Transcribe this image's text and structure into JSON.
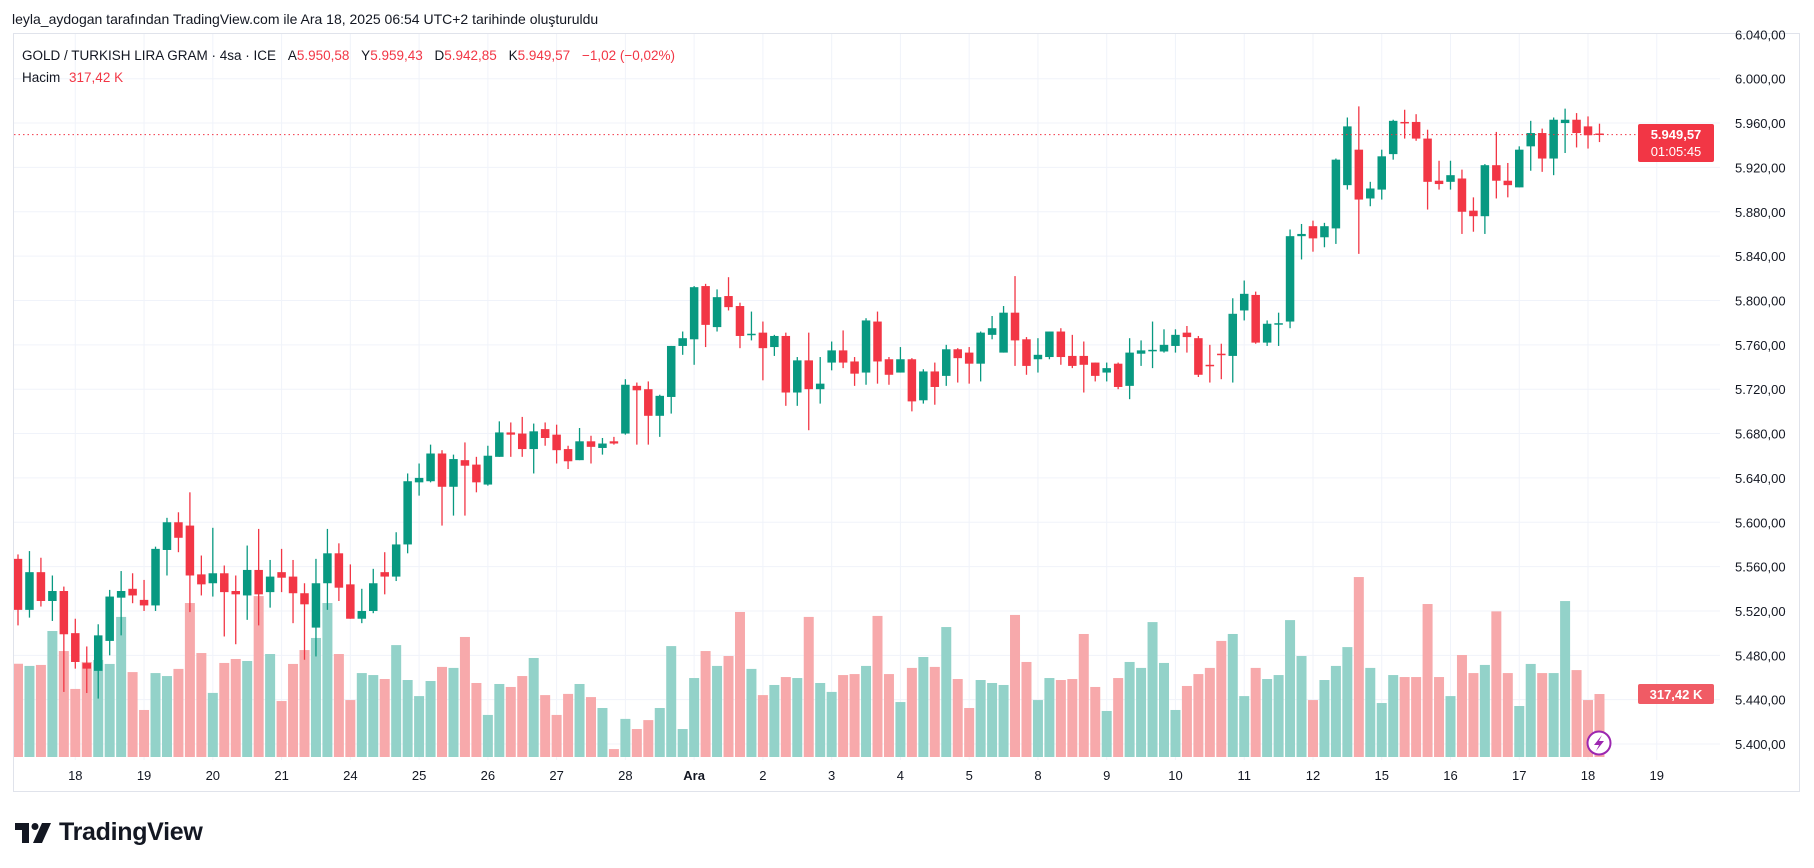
{
  "credit": "leyla_aydogan tarafından TradingView.com ile Ara 18, 2025 06:54 UTC+2 tarihinde oluşturuldu",
  "legend": {
    "symbol": "GOLD / TURKISH LIRA GRAM · 4sa · ICE",
    "open_label": "A",
    "open": "5.950,58",
    "high_label": "Y",
    "high": "5.959,43",
    "low_label": "D",
    "low": "5.942,85",
    "close_label": "K",
    "close": "5.949,57",
    "change": "−1,02 (−0,02%)",
    "volume_label": "Hacim",
    "volume": "317,42 K"
  },
  "price_tag": {
    "price": "5.949,57",
    "countdown": "01:05:45"
  },
  "volume_tag": "317,42 K",
  "logo": "TradingView",
  "colors": {
    "up": "#089981",
    "down": "#f23645",
    "up_volume": "#93d2c9",
    "down_volume": "#f7a9ab",
    "grid": "#f0f3fa"
  },
  "chart_data": {
    "type": "candlestick",
    "title": "GOLD / TURKISH LIRA GRAM · 4sa · ICE",
    "ylim": [
      5380,
      6052
    ],
    "y_tick_values": [
      5400,
      5440,
      5480,
      5520,
      5560,
      5600,
      5640,
      5680,
      5720,
      5760,
      5800,
      5840,
      5880,
      5920,
      5960,
      6000,
      6040
    ],
    "y_ticks": [
      "5.400,00",
      "5.440,00",
      "5.480,00",
      "5.520,00",
      "5.560,00",
      "5.600,00",
      "5.640,00",
      "5.680,00",
      "5.720,00",
      "5.760,00",
      "5.800,00",
      "5.840,00",
      "5.880,00",
      "5.920,00",
      "5.960,00",
      "6.000,00",
      "6.040,00"
    ],
    "x_ticks": [
      "18",
      "19",
      "20",
      "21",
      "24",
      "25",
      "26",
      "27",
      "28",
      "Ara",
      "2",
      "3",
      "4",
      "5",
      "8",
      "9",
      "10",
      "11",
      "12",
      "15",
      "16",
      "17",
      "18",
      "19"
    ],
    "x_tick_candle_index": [
      5,
      11,
      17,
      23,
      29,
      35,
      41,
      47,
      53,
      59,
      65,
      71,
      77,
      83,
      89,
      95,
      101,
      107,
      113,
      119,
      125,
      131,
      137,
      143
    ],
    "bold_x_ticks": [
      "Ara"
    ],
    "last_price": 5949.57,
    "volume_unit": "K",
    "candle_fields": [
      "open",
      "high",
      "low",
      "close",
      "volume"
    ],
    "candles": [
      [
        5567,
        5571,
        5507,
        5521,
        470
      ],
      [
        5521,
        5574,
        5514,
        5555,
        459
      ],
      [
        5555,
        5568,
        5524,
        5529,
        464
      ],
      [
        5529,
        5552,
        5511,
        5538,
        635
      ],
      [
        5538,
        5542,
        5447,
        5499,
        534
      ],
      [
        5500,
        5513,
        5468,
        5474,
        343
      ],
      [
        5473,
        5488,
        5446,
        5468,
        479
      ],
      [
        5466,
        5508,
        5441,
        5498,
        489
      ],
      [
        5493,
        5539,
        5480,
        5533,
        469
      ],
      [
        5532,
        5556,
        5498,
        5538,
        706
      ],
      [
        5540,
        5554,
        5527,
        5534,
        428
      ],
      [
        5530,
        5548,
        5520,
        5525,
        237
      ],
      [
        5525,
        5578,
        5520,
        5576,
        423
      ],
      [
        5575,
        5604,
        5552,
        5600,
        408
      ],
      [
        5600,
        5609,
        5573,
        5586,
        444
      ],
      [
        5597,
        5627,
        5519,
        5552,
        776
      ],
      [
        5553,
        5570,
        5534,
        5544,
        524
      ],
      [
        5545,
        5595,
        5533,
        5554,
        323
      ],
      [
        5554,
        5561,
        5497,
        5537,
        474
      ],
      [
        5538,
        5552,
        5490,
        5535,
        494
      ],
      [
        5534,
        5579,
        5512,
        5557,
        484
      ],
      [
        5557,
        5594,
        5507,
        5535,
        811
      ],
      [
        5537,
        5566,
        5523,
        5551,
        519
      ],
      [
        5555,
        5576,
        5537,
        5550,
        282
      ],
      [
        5551,
        5566,
        5509,
        5536,
        469
      ],
      [
        5536,
        5545,
        5476,
        5526,
        539
      ],
      [
        5505,
        5567,
        5479,
        5545,
        600
      ],
      [
        5545,
        5594,
        5521,
        5572,
        776
      ],
      [
        5572,
        5581,
        5529,
        5541,
        519
      ],
      [
        5544,
        5562,
        5513,
        5513,
        287
      ],
      [
        5513,
        5540,
        5509,
        5520,
        423
      ],
      [
        5520,
        5558,
        5518,
        5545,
        413
      ],
      [
        5555,
        5573,
        5535,
        5551,
        393
      ],
      [
        5551,
        5591,
        5547,
        5580,
        564
      ],
      [
        5580,
        5644,
        5572,
        5637,
        388
      ],
      [
        5636,
        5653,
        5624,
        5640,
        307
      ],
      [
        5637,
        5670,
        5636,
        5662,
        383
      ],
      [
        5662,
        5665,
        5597,
        5632,
        454
      ],
      [
        5632,
        5661,
        5606,
        5657,
        449
      ],
      [
        5656,
        5672,
        5606,
        5651,
        605
      ],
      [
        5652,
        5659,
        5627,
        5636,
        373
      ],
      [
        5634,
        5669,
        5633,
        5660,
        212
      ],
      [
        5659,
        5691,
        5659,
        5681,
        368
      ],
      [
        5681,
        5690,
        5659,
        5679,
        353
      ],
      [
        5680,
        5695,
        5659,
        5666,
        408
      ],
      [
        5666,
        5689,
        5644,
        5682,
        499
      ],
      [
        5684,
        5690,
        5669,
        5676,
        312
      ],
      [
        5679,
        5688,
        5653,
        5665,
        212
      ],
      [
        5666,
        5669,
        5648,
        5655,
        318
      ],
      [
        5656,
        5685,
        5656,
        5673,
        368
      ],
      [
        5673,
        5678,
        5653,
        5668,
        302
      ],
      [
        5667,
        5676,
        5661,
        5671,
        247
      ],
      [
        5673,
        5677,
        5670,
        5671,
        40
      ],
      [
        5680,
        5729,
        5679,
        5724,
        192
      ],
      [
        5723,
        5726,
        5670,
        5719,
        141
      ],
      [
        5720,
        5727,
        5670,
        5696,
        186
      ],
      [
        5696,
        5715,
        5677,
        5714,
        247
      ],
      [
        5713,
        5759,
        5698,
        5759,
        559
      ],
      [
        5759,
        5772,
        5751,
        5766,
        141
      ],
      [
        5765,
        5813,
        5742,
        5812,
        398
      ],
      [
        5813,
        5815,
        5758,
        5778,
        534
      ],
      [
        5776,
        5810,
        5772,
        5803,
        459
      ],
      [
        5804,
        5821,
        5791,
        5794,
        509
      ],
      [
        5795,
        5798,
        5757,
        5768,
        731
      ],
      [
        5769,
        5790,
        5764,
        5770,
        444
      ],
      [
        5771,
        5781,
        5728,
        5757,
        312
      ],
      [
        5758,
        5769,
        5750,
        5768,
        363
      ],
      [
        5768,
        5771,
        5705,
        5717,
        403
      ],
      [
        5717,
        5749,
        5705,
        5746,
        398
      ],
      [
        5746,
        5771,
        5683,
        5720,
        706
      ],
      [
        5720,
        5749,
        5707,
        5725,
        373
      ],
      [
        5744,
        5763,
        5737,
        5755,
        328
      ],
      [
        5755,
        5773,
        5739,
        5744,
        413
      ],
      [
        5745,
        5749,
        5723,
        5734,
        418
      ],
      [
        5735,
        5784,
        5724,
        5782,
        459
      ],
      [
        5781,
        5790,
        5725,
        5745,
        711
      ],
      [
        5747,
        5749,
        5724,
        5733,
        418
      ],
      [
        5735,
        5758,
        5735,
        5747,
        277
      ],
      [
        5747,
        5748,
        5700,
        5709,
        449
      ],
      [
        5710,
        5738,
        5707,
        5736,
        504
      ],
      [
        5736,
        5744,
        5706,
        5722,
        454
      ],
      [
        5732,
        5760,
        5723,
        5756,
        655
      ],
      [
        5756,
        5757,
        5726,
        5748,
        393
      ],
      [
        5753,
        5758,
        5725,
        5743,
        247
      ],
      [
        5743,
        5772,
        5727,
        5771,
        388
      ],
      [
        5769,
        5786,
        5765,
        5775,
        373
      ],
      [
        5753,
        5795,
        5753,
        5789,
        363
      ],
      [
        5789,
        5822,
        5741,
        5764,
        716
      ],
      [
        5765,
        5767,
        5733,
        5741,
        479
      ],
      [
        5747,
        5766,
        5735,
        5751,
        287
      ],
      [
        5749,
        5772,
        5747,
        5772,
        398
      ],
      [
        5772,
        5775,
        5742,
        5749,
        388
      ],
      [
        5750,
        5769,
        5739,
        5741,
        393
      ],
      [
        5750,
        5763,
        5717,
        5742,
        620
      ],
      [
        5744,
        5744,
        5727,
        5732,
        353
      ],
      [
        5735,
        5744,
        5727,
        5739,
        232
      ],
      [
        5743,
        5744,
        5720,
        5722,
        398
      ],
      [
        5723,
        5766,
        5711,
        5753,
        479
      ],
      [
        5752,
        5764,
        5741,
        5755,
        449
      ],
      [
        5755,
        5781,
        5739,
        5755.5,
        680
      ],
      [
        5754,
        5774,
        5753,
        5760,
        474
      ],
      [
        5759,
        5774,
        5753,
        5769,
        237
      ],
      [
        5771,
        5777,
        5753,
        5767,
        358
      ],
      [
        5766,
        5768,
        5731,
        5733,
        418
      ],
      [
        5742,
        5760,
        5726,
        5741.5,
        449
      ],
      [
        5752,
        5761,
        5729,
        5751.5,
        585
      ],
      [
        5750,
        5802,
        5726,
        5788,
        620
      ],
      [
        5791,
        5818,
        5782,
        5806,
        307
      ],
      [
        5805,
        5808,
        5761,
        5762,
        449
      ],
      [
        5762,
        5782,
        5759,
        5779,
        393
      ],
      [
        5779,
        5789,
        5759,
        5779.5,
        413
      ],
      [
        5781,
        5864,
        5775,
        5858,
        690
      ],
      [
        5858,
        5869,
        5837,
        5860,
        509
      ],
      [
        5867,
        5872,
        5844,
        5856,
        287
      ],
      [
        5857,
        5870,
        5848,
        5867,
        388
      ],
      [
        5865,
        5928,
        5851,
        5927,
        459
      ],
      [
        5904,
        5965,
        5900,
        5957,
        554
      ],
      [
        5936,
        5975,
        5842,
        5891,
        907
      ],
      [
        5892,
        5907,
        5885,
        5901,
        449
      ],
      [
        5900,
        5936,
        5891,
        5930,
        272
      ],
      [
        5932,
        5963,
        5927,
        5962,
        413
      ],
      [
        5961,
        5972,
        5946,
        5960.5,
        403
      ],
      [
        5961,
        5968,
        5944,
        5946,
        403
      ],
      [
        5946,
        5954,
        5882,
        5907,
        771
      ],
      [
        5908,
        5926,
        5900,
        5905,
        403
      ],
      [
        5907,
        5926,
        5900,
        5913,
        307
      ],
      [
        5910,
        5918,
        5860,
        5880,
        514
      ],
      [
        5881,
        5893,
        5862,
        5876,
        423
      ],
      [
        5876,
        5923,
        5860,
        5922,
        464
      ],
      [
        5922,
        5952,
        5892,
        5908,
        734
      ],
      [
        5908,
        5924,
        5893,
        5904,
        423
      ],
      [
        5902,
        5939,
        5902,
        5936,
        257
      ],
      [
        5939,
        5962,
        5917,
        5951,
        469
      ],
      [
        5951,
        5955,
        5916,
        5928,
        423
      ],
      [
        5928,
        5965,
        5913,
        5963,
        423
      ],
      [
        5960,
        5973,
        5933,
        5963,
        786
      ],
      [
        5963,
        5969,
        5938,
        5951,
        438
      ],
      [
        5957,
        5966,
        5937,
        5949,
        287
      ],
      [
        5950.58,
        5959.43,
        5942.85,
        5949.57,
        317.42
      ]
    ]
  }
}
